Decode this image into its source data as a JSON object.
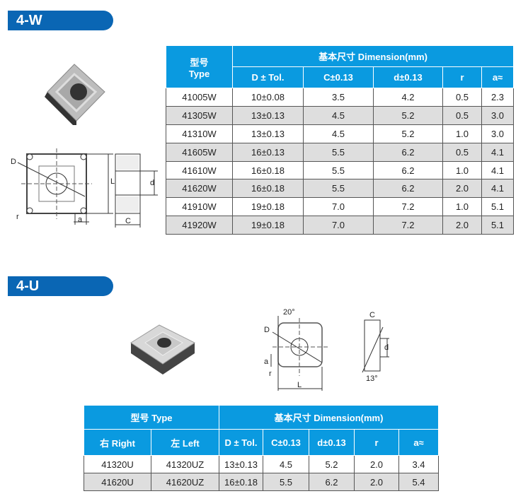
{
  "section_w": {
    "title": "4-W",
    "drawing_labels": {
      "D": "D",
      "L": "L",
      "d": "d",
      "a": "a",
      "r": "r",
      "C": "C"
    },
    "table": {
      "type_zh": "型号",
      "type_en": "Type",
      "dimension": "基本尺寸  Dimension(mm)",
      "columns": [
        "D ± Tol.",
        "C±0.13",
        "d±0.13",
        "r",
        "a≈"
      ],
      "rows": [
        [
          "41005W",
          "10±0.08",
          "3.5",
          "4.2",
          "0.5",
          "2.3"
        ],
        [
          "41305W",
          "13±0.13",
          "4.5",
          "5.2",
          "0.5",
          "3.0"
        ],
        [
          "41310W",
          "13±0.13",
          "4.5",
          "5.2",
          "1.0",
          "3.0"
        ],
        [
          "41605W",
          "16±0.13",
          "5.5",
          "6.2",
          "0.5",
          "4.1"
        ],
        [
          "41610W",
          "16±0.18",
          "5.5",
          "6.2",
          "1.0",
          "4.1"
        ],
        [
          "41620W",
          "16±0.18",
          "5.5",
          "6.2",
          "2.0",
          "4.1"
        ],
        [
          "41910W",
          "19±0.18",
          "7.0",
          "7.2",
          "1.0",
          "5.1"
        ],
        [
          "41920W",
          "19±0.18",
          "7.0",
          "7.2",
          "2.0",
          "5.1"
        ]
      ]
    }
  },
  "section_u": {
    "title": "4-U",
    "drawing_labels": {
      "angle1": "20°",
      "D": "D",
      "a": "a",
      "r": "r",
      "L": "L",
      "C": "C",
      "d": "d",
      "angle2": "13°"
    },
    "table": {
      "type": "型号    Type",
      "dimension": "基本尺寸  Dimension(mm)",
      "right": "右   Right",
      "left": "左   Left",
      "columns": [
        "D ± Tol.",
        "C±0.13",
        "d±0.13",
        "r",
        "a≈"
      ],
      "rows": [
        [
          "41320U",
          "41320UZ",
          "13±0.13",
          "4.5",
          "5.2",
          "2.0",
          "3.4"
        ],
        [
          "41620U",
          "41620UZ",
          "16±0.18",
          "5.5",
          "6.2",
          "2.0",
          "5.4"
        ]
      ]
    }
  },
  "colors": {
    "banner": "#0a66b4",
    "header": "#0a9ae0",
    "alt_row": "#dedede"
  }
}
